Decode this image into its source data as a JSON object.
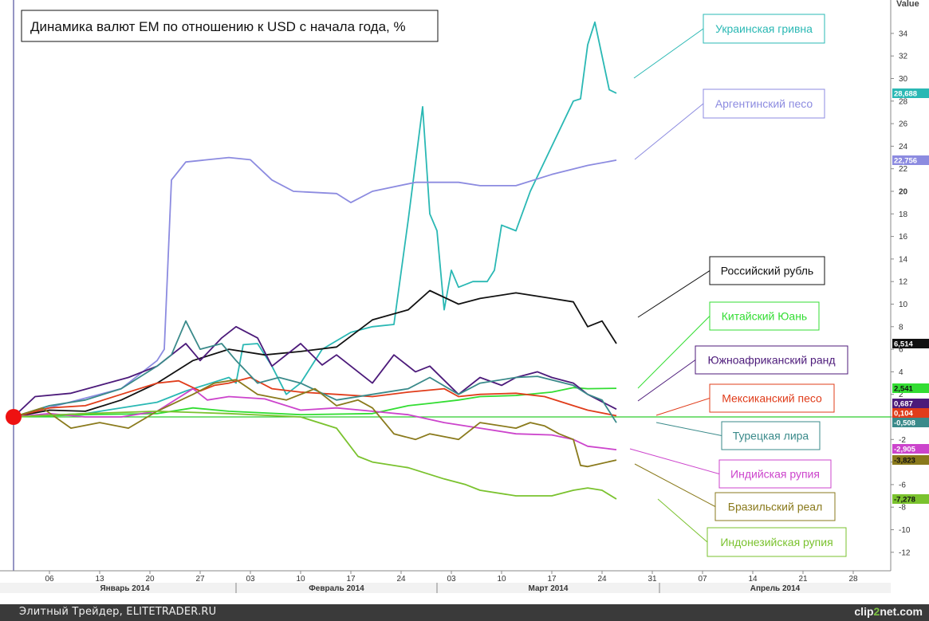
{
  "chart_data": {
    "type": "line",
    "title": "Динамика валют EM по отношению к USD с начала года, %",
    "ylabel": "Value",
    "ylim": [
      -13.5,
      36.5
    ],
    "ticks": [
      34,
      32,
      30,
      28,
      26,
      24,
      22,
      20,
      18,
      16,
      14,
      12,
      10,
      8,
      6,
      4,
      2,
      0,
      -2,
      -4,
      -6,
      -8,
      -10,
      -12
    ],
    "x_start": "2014-01-01",
    "x_end": "2014-05-06",
    "x_ticks": [
      {
        "day": 5,
        "label": "06"
      },
      {
        "day": 12,
        "label": "13"
      },
      {
        "day": 19,
        "label": "20"
      },
      {
        "day": 26,
        "label": "27"
      },
      {
        "day": 33,
        "label": "03"
      },
      {
        "day": 40,
        "label": "10"
      },
      {
        "day": 47,
        "label": "17"
      },
      {
        "day": 54,
        "label": "24"
      },
      {
        "day": 61,
        "label": "03"
      },
      {
        "day": 68,
        "label": "10"
      },
      {
        "day": 75,
        "label": "17"
      },
      {
        "day": 82,
        "label": "24"
      },
      {
        "day": 89,
        "label": "31"
      },
      {
        "day": 96,
        "label": "07"
      },
      {
        "day": 103,
        "label": "14"
      },
      {
        "day": 110,
        "label": "21"
      },
      {
        "day": 117,
        "label": "28"
      }
    ],
    "months": [
      {
        "label": "Январь 2014",
        "start": 0,
        "end": 31
      },
      {
        "label": "Февраль 2014",
        "start": 31,
        "end": 59
      },
      {
        "label": "Март 2014",
        "start": 59,
        "end": 90
      },
      {
        "label": "Апрель 2014",
        "start": 90,
        "end": 127
      }
    ],
    "series": [
      {
        "name": "Украинская гривна",
        "color": "#2ab8b4",
        "last": "28,688",
        "label_pos": "top",
        "points": [
          [
            0,
            0
          ],
          [
            10,
            0.3
          ],
          [
            20,
            1.3
          ],
          [
            24,
            2.3
          ],
          [
            30,
            3.5
          ],
          [
            31,
            3.0
          ],
          [
            32,
            6.4
          ],
          [
            34,
            6.5
          ],
          [
            36,
            4.5
          ],
          [
            38,
            2.0
          ],
          [
            40,
            3.0
          ],
          [
            43,
            6.0
          ],
          [
            47,
            7.5
          ],
          [
            50,
            8.0
          ],
          [
            53,
            8.2
          ],
          [
            55,
            17.5
          ],
          [
            57,
            27.5
          ],
          [
            58,
            18.0
          ],
          [
            59,
            16.5
          ],
          [
            60,
            9.5
          ],
          [
            61,
            13.0
          ],
          [
            62,
            11.5
          ],
          [
            64,
            12.0
          ],
          [
            66,
            12.0
          ],
          [
            67,
            13.0
          ],
          [
            68,
            17.0
          ],
          [
            70,
            16.5
          ],
          [
            72,
            20.0
          ],
          [
            75,
            24.0
          ],
          [
            78,
            28.0
          ],
          [
            79,
            28.2
          ],
          [
            80,
            33.0
          ],
          [
            81,
            35.0
          ],
          [
            83,
            29.0
          ],
          [
            84,
            28.7
          ]
        ]
      },
      {
        "name": "Аргентинский песо",
        "color": "#8c8be0",
        "last": "22,756",
        "label_pos": "top",
        "points": [
          [
            0,
            0
          ],
          [
            15,
            2.5
          ],
          [
            20,
            5.0
          ],
          [
            21,
            6.0
          ],
          [
            22,
            21.0
          ],
          [
            24,
            22.6
          ],
          [
            27,
            22.8
          ],
          [
            30,
            23.0
          ],
          [
            33,
            22.8
          ],
          [
            36,
            21.0
          ],
          [
            39,
            20.0
          ],
          [
            45,
            19.8
          ],
          [
            47,
            19.0
          ],
          [
            50,
            20.0
          ],
          [
            56,
            20.8
          ],
          [
            62,
            20.8
          ],
          [
            65,
            20.5
          ],
          [
            70,
            20.5
          ],
          [
            75,
            21.5
          ],
          [
            80,
            22.3
          ],
          [
            84,
            22.76
          ]
        ]
      },
      {
        "name": "Российский рубль",
        "color": "#111111",
        "last": "6,514",
        "label_pos": "top",
        "points": [
          [
            0,
            0
          ],
          [
            5,
            0.6
          ],
          [
            10,
            0.5
          ],
          [
            15,
            1.5
          ],
          [
            20,
            3.0
          ],
          [
            25,
            5.0
          ],
          [
            30,
            6.0
          ],
          [
            35,
            5.5
          ],
          [
            40,
            5.8
          ],
          [
            45,
            6.2
          ],
          [
            50,
            8.6
          ],
          [
            55,
            9.5
          ],
          [
            58,
            11.2
          ],
          [
            62,
            10.0
          ],
          [
            65,
            10.5
          ],
          [
            70,
            11.0
          ],
          [
            75,
            10.5
          ],
          [
            78,
            10.2
          ],
          [
            80,
            8.0
          ],
          [
            82,
            8.5
          ],
          [
            84,
            6.5
          ]
        ]
      },
      {
        "name": "Китайский Юань",
        "color": "#33dd33",
        "last": "2,541",
        "label_pos": "top",
        "points": [
          [
            0,
            0
          ],
          [
            10,
            0.2
          ],
          [
            20,
            0.3
          ],
          [
            25,
            0.8
          ],
          [
            30,
            0.5
          ],
          [
            40,
            0.2
          ],
          [
            50,
            0.3
          ],
          [
            55,
            1.0
          ],
          [
            58,
            1.2
          ],
          [
            62,
            1.5
          ],
          [
            65,
            1.8
          ],
          [
            70,
            1.9
          ],
          [
            75,
            2.2
          ],
          [
            78,
            2.6
          ],
          [
            80,
            2.5
          ],
          [
            84,
            2.54
          ]
        ]
      },
      {
        "name": "Южноафриканский ранд",
        "color": "#4c1a7a",
        "last": "0,687",
        "label_pos": "top",
        "points": [
          [
            0,
            0
          ],
          [
            3,
            1.8
          ],
          [
            8,
            2.1
          ],
          [
            12,
            2.8
          ],
          [
            16,
            3.5
          ],
          [
            20,
            4.5
          ],
          [
            24,
            6.5
          ],
          [
            26,
            5.0
          ],
          [
            29,
            7.0
          ],
          [
            31,
            8.0
          ],
          [
            34,
            7.0
          ],
          [
            36,
            4.5
          ],
          [
            40,
            6.5
          ],
          [
            43,
            4.6
          ],
          [
            45,
            5.5
          ],
          [
            50,
            3.0
          ],
          [
            53,
            5.5
          ],
          [
            56,
            4.0
          ],
          [
            58,
            4.5
          ],
          [
            62,
            2.0
          ],
          [
            65,
            3.5
          ],
          [
            68,
            2.8
          ],
          [
            70,
            3.5
          ],
          [
            73,
            4.0
          ],
          [
            75,
            3.5
          ],
          [
            78,
            3.0
          ],
          [
            80,
            2.0
          ],
          [
            84,
            0.687
          ]
        ]
      },
      {
        "name": "Мексиканский песо",
        "color": "#e03c1a",
        "last": "0,104",
        "label_pos": "bottom",
        "points": [
          [
            0,
            0
          ],
          [
            5,
            0.8
          ],
          [
            10,
            1.0
          ],
          [
            15,
            2.0
          ],
          [
            20,
            3.0
          ],
          [
            23,
            3.2
          ],
          [
            26,
            2.3
          ],
          [
            28,
            2.8
          ],
          [
            30,
            3.0
          ],
          [
            33,
            3.5
          ],
          [
            36,
            2.5
          ],
          [
            40,
            2.2
          ],
          [
            45,
            2.0
          ],
          [
            50,
            1.8
          ],
          [
            55,
            2.2
          ],
          [
            60,
            2.5
          ],
          [
            62,
            1.8
          ],
          [
            65,
            2.0
          ],
          [
            70,
            2.1
          ],
          [
            74,
            1.8
          ],
          [
            78,
            1.0
          ],
          [
            80,
            0.6
          ],
          [
            84,
            0.104
          ]
        ]
      },
      {
        "name": "Турецкая лира",
        "color": "#3a8a8a",
        "last": "-0,508",
        "label_pos": "bottom",
        "points": [
          [
            0,
            0
          ],
          [
            5,
            1.0
          ],
          [
            10,
            1.5
          ],
          [
            15,
            2.5
          ],
          [
            20,
            4.5
          ],
          [
            22,
            5.5
          ],
          [
            24,
            8.5
          ],
          [
            26,
            6.0
          ],
          [
            29,
            6.5
          ],
          [
            31,
            5.0
          ],
          [
            34,
            3.0
          ],
          [
            37,
            3.5
          ],
          [
            40,
            3.0
          ],
          [
            45,
            1.5
          ],
          [
            50,
            2.0
          ],
          [
            55,
            2.5
          ],
          [
            58,
            3.5
          ],
          [
            62,
            2.0
          ],
          [
            65,
            3.0
          ],
          [
            70,
            3.5
          ],
          [
            73,
            3.6
          ],
          [
            78,
            2.8
          ],
          [
            80,
            2.0
          ],
          [
            82,
            1.5
          ],
          [
            84,
            -0.508
          ]
        ]
      },
      {
        "name": "Индийская рупия",
        "color": "#cc44cc",
        "last": "-2,905",
        "label_pos": "bottom",
        "points": [
          [
            0,
            0
          ],
          [
            5,
            0.3
          ],
          [
            10,
            0.0
          ],
          [
            15,
            0.0
          ],
          [
            20,
            0.5
          ],
          [
            25,
            2.5
          ],
          [
            27,
            1.5
          ],
          [
            30,
            1.8
          ],
          [
            35,
            1.6
          ],
          [
            40,
            0.6
          ],
          [
            45,
            0.8
          ],
          [
            50,
            0.5
          ],
          [
            55,
            0.2
          ],
          [
            60,
            -0.5
          ],
          [
            65,
            -1.0
          ],
          [
            70,
            -1.5
          ],
          [
            75,
            -1.6
          ],
          [
            78,
            -2.0
          ],
          [
            80,
            -2.6
          ],
          [
            84,
            -2.905
          ]
        ]
      },
      {
        "name": "Бразильский реал",
        "color": "#8a7a1c",
        "last": "-3,823",
        "label_pos": "bottom",
        "points": [
          [
            0,
            0
          ],
          [
            4,
            0.8
          ],
          [
            8,
            -1.0
          ],
          [
            12,
            -0.5
          ],
          [
            16,
            -1.0
          ],
          [
            20,
            0.5
          ],
          [
            25,
            2.0
          ],
          [
            28,
            3.0
          ],
          [
            31,
            3.3
          ],
          [
            34,
            2.0
          ],
          [
            38,
            1.5
          ],
          [
            42,
            2.5
          ],
          [
            45,
            1.0
          ],
          [
            48,
            1.5
          ],
          [
            50,
            0.8
          ],
          [
            53,
            -1.5
          ],
          [
            56,
            -2.0
          ],
          [
            58,
            -1.5
          ],
          [
            62,
            -2.0
          ],
          [
            65,
            -0.5
          ],
          [
            70,
            -1.0
          ],
          [
            72,
            -0.5
          ],
          [
            74,
            -0.8
          ],
          [
            76,
            -1.5
          ],
          [
            78,
            -2.0
          ],
          [
            79,
            -4.3
          ],
          [
            80,
            -4.4
          ],
          [
            84,
            -3.823
          ]
        ]
      },
      {
        "name": "Индонезийская рупия",
        "color": "#7ac22e",
        "last": "-7,278",
        "label_pos": "bottom",
        "points": [
          [
            0,
            0
          ],
          [
            10,
            0.3
          ],
          [
            20,
            0.5
          ],
          [
            30,
            0.3
          ],
          [
            40,
            0.0
          ],
          [
            45,
            -1.0
          ],
          [
            48,
            -3.5
          ],
          [
            50,
            -4.0
          ],
          [
            55,
            -4.5
          ],
          [
            60,
            -5.5
          ],
          [
            63,
            -6.0
          ],
          [
            65,
            -6.5
          ],
          [
            70,
            -7.0
          ],
          [
            75,
            -7.0
          ],
          [
            78,
            -6.5
          ],
          [
            80,
            -6.3
          ],
          [
            82,
            -6.5
          ],
          [
            84,
            -7.278
          ]
        ]
      }
    ],
    "legend_boxes": [
      {
        "series": 0,
        "label": "Украинская гривна"
      },
      {
        "series": 1,
        "label": "Аргентинский песо"
      },
      {
        "series": 2,
        "label": "Российский рубль"
      },
      {
        "series": 3,
        "label": "Китайский Юань"
      },
      {
        "series": 4,
        "label": "Южноафриканский ранд"
      },
      {
        "series": 5,
        "label": "Мексиканский песо"
      },
      {
        "series": 6,
        "label": "Турецкая лира"
      },
      {
        "series": 7,
        "label": "Индийская рупия"
      },
      {
        "series": 8,
        "label": "Бразильский реал"
      },
      {
        "series": 9,
        "label": "Индонезийская рупия"
      }
    ]
  },
  "footer": {
    "left": "Элитный Трейдер, ELITETRADER.RU",
    "brand_a": "clip",
    "brand_b": "2",
    "brand_c": "net.com"
  }
}
